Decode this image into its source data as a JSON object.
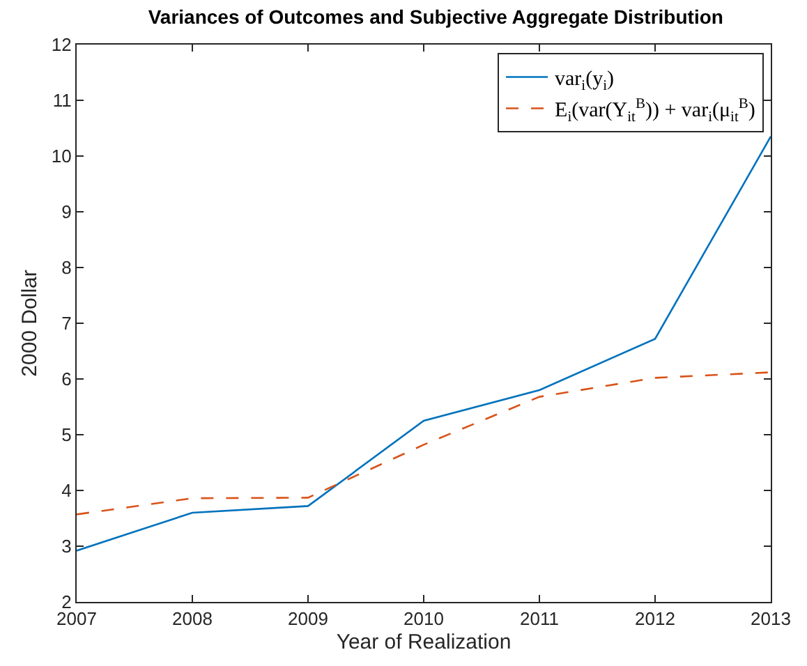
{
  "chart_data": {
    "type": "line",
    "title": "Variances of Outcomes and Subjective Aggregate Distribution",
    "xlabel": "Year of Realization",
    "ylabel": "2000 Dollar",
    "x": [
      2007,
      2008,
      2009,
      2010,
      2011,
      2012,
      2013
    ],
    "series": [
      {
        "name": "var$_{i}$(y$_{i}$)",
        "color": "#0072bd",
        "line_style": "solid",
        "values": [
          2.92,
          3.6,
          3.72,
          5.25,
          5.8,
          6.72,
          10.35
        ]
      },
      {
        "name": "E$_{i}$(var(Y$_{it}$$^{B}$)) + var$_{i}$(μ$_{it}$$^{B}$)",
        "color": "#d95319",
        "line_style": "dashed",
        "values": [
          3.57,
          3.86,
          3.87,
          4.82,
          5.68,
          6.02,
          6.12
        ]
      }
    ],
    "xlim": [
      2007,
      2013
    ],
    "xticks": [
      2007,
      2008,
      2009,
      2010,
      2011,
      2012,
      2013
    ],
    "ylim": [
      2,
      12
    ],
    "yticks": [
      2,
      3,
      4,
      5,
      6,
      7,
      8,
      9,
      10,
      11,
      12
    ],
    "legend": "top right",
    "marker": "none"
  }
}
